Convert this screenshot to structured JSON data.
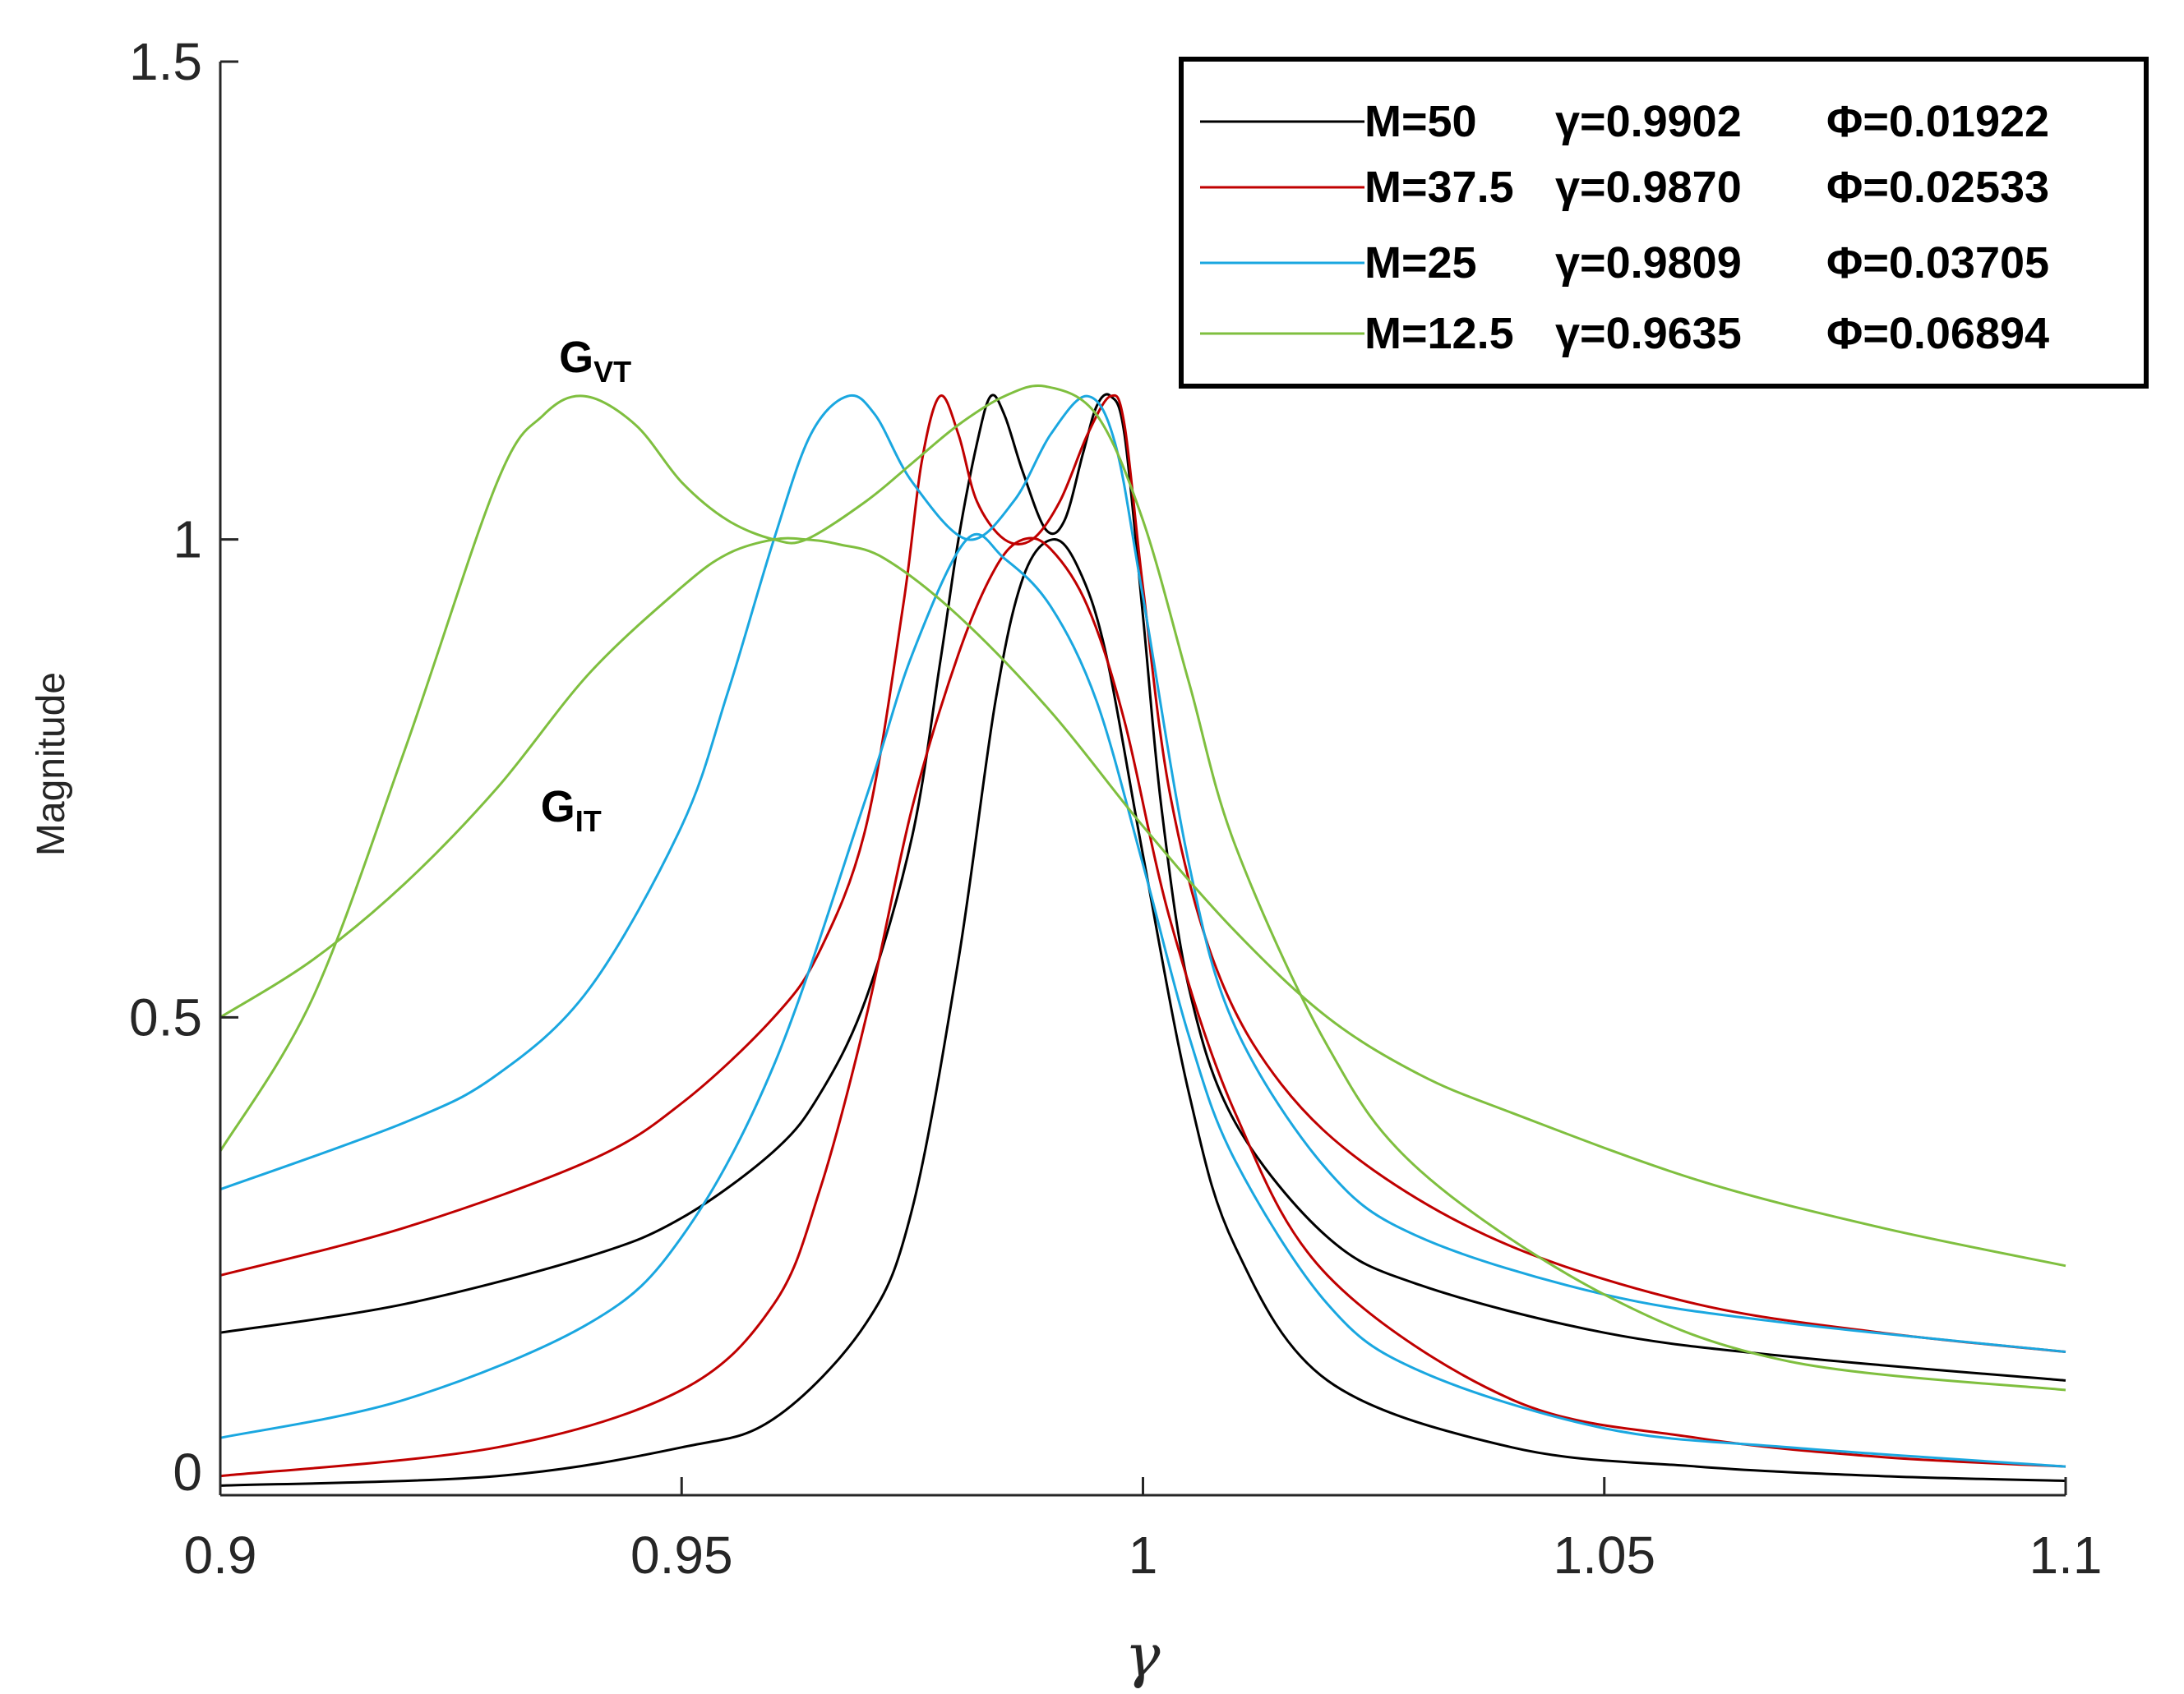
{
  "chart_data": {
    "type": "line",
    "title": "",
    "xlabel": "γ",
    "ylabel": "Magnitude",
    "xlim": [
      0.9,
      1.1
    ],
    "ylim": [
      0,
      1.5
    ],
    "xticks": [
      0.9,
      0.95,
      1,
      1.05,
      1.1
    ],
    "xtick_labels": [
      "0.9",
      "0.95",
      "1",
      "1.05",
      "1.1"
    ],
    "yticks": [
      0,
      0.5,
      1,
      1.5
    ],
    "ytick_labels": [
      "0",
      "0.5",
      "1",
      "1.5"
    ],
    "grid": false,
    "legend_position": "top-right",
    "legend": [
      {
        "label": "M=50",
        "gamma": "γ=0.9902",
        "phi": "Φ=0.01922",
        "color": "#000000"
      },
      {
        "label": "M=37.5",
        "gamma": "γ=0.9870",
        "phi": "Φ=0.02533",
        "color": "#c00000"
      },
      {
        "label": "M=25",
        "gamma": "γ=0.9809",
        "phi": "Φ=0.03705",
        "color": "#1aa7e0"
      },
      {
        "label": "M=12.5",
        "gamma": "γ=0.9635",
        "phi": "Φ=0.06894",
        "color": "#7fbf3f"
      }
    ],
    "annotations": [
      {
        "main": "G",
        "sub": "VT",
        "x": 0.9385,
        "y": 1.175
      },
      {
        "main": "G",
        "sub": "IT",
        "x": 0.9365,
        "y": 0.705
      }
    ],
    "series": [
      {
        "name": "G_VT M=50",
        "color": "#000000",
        "x": [
          0.9,
          0.92,
          0.94,
          0.95,
          0.96,
          0.965,
          0.97,
          0.975,
          0.978,
          0.98,
          0.982,
          0.9835,
          0.985,
          0.987,
          0.9895,
          0.9915,
          0.9935,
          0.995,
          0.9965,
          0.998,
          1.0,
          1.002,
          1.005,
          1.01,
          1.02,
          1.03,
          1.05,
          1.07,
          1.1
        ],
        "y": [
          0.17,
          0.2,
          0.25,
          0.29,
          0.36,
          0.42,
          0.52,
          0.69,
          0.87,
          1.0,
          1.1,
          1.15,
          1.13,
          1.07,
          1.01,
          1.02,
          1.09,
          1.14,
          1.15,
          1.11,
          0.92,
          0.72,
          0.53,
          0.39,
          0.27,
          0.22,
          0.17,
          0.145,
          0.12
        ]
      },
      {
        "name": "G_IT M=50",
        "color": "#000000",
        "x": [
          0.9,
          0.93,
          0.95,
          0.96,
          0.97,
          0.975,
          0.98,
          0.984,
          0.987,
          0.9902,
          0.993,
          0.996,
          1.0,
          1.005,
          1.01,
          1.02,
          1.04,
          1.06,
          1.08,
          1.1
        ],
        "y": [
          0.01,
          0.02,
          0.05,
          0.08,
          0.18,
          0.3,
          0.56,
          0.83,
          0.96,
          1.0,
          0.97,
          0.88,
          0.67,
          0.42,
          0.26,
          0.12,
          0.05,
          0.03,
          0.02,
          0.015
        ]
      },
      {
        "name": "G_VT M=37.5",
        "color": "#c00000",
        "x": [
          0.9,
          0.92,
          0.94,
          0.95,
          0.96,
          0.965,
          0.97,
          0.974,
          0.976,
          0.978,
          0.98,
          0.982,
          0.985,
          0.988,
          0.991,
          0.994,
          0.9965,
          0.998,
          1.0,
          1.003,
          1.008,
          1.015,
          1.025,
          1.04,
          1.06,
          1.08,
          1.1
        ],
        "y": [
          0.23,
          0.28,
          0.35,
          0.41,
          0.5,
          0.57,
          0.7,
          0.93,
          1.08,
          1.15,
          1.11,
          1.04,
          1.0,
          1.0,
          1.04,
          1.11,
          1.15,
          1.12,
          0.95,
          0.73,
          0.55,
          0.43,
          0.34,
          0.26,
          0.2,
          0.17,
          0.15
        ]
      },
      {
        "name": "G_IT M=37.5",
        "color": "#c00000",
        "x": [
          0.9,
          0.93,
          0.95,
          0.96,
          0.965,
          0.97,
          0.975,
          0.98,
          0.984,
          0.987,
          0.99,
          0.994,
          0.998,
          1.003,
          1.01,
          1.02,
          1.04,
          1.06,
          1.08,
          1.1
        ],
        "y": [
          0.02,
          0.05,
          0.11,
          0.2,
          0.32,
          0.5,
          0.72,
          0.88,
          0.97,
          1.0,
          0.99,
          0.93,
          0.81,
          0.6,
          0.4,
          0.23,
          0.1,
          0.06,
          0.04,
          0.03
        ]
      },
      {
        "name": "G_VT M=25",
        "color": "#1aa7e0",
        "x": [
          0.9,
          0.92,
          0.93,
          0.94,
          0.95,
          0.955,
          0.96,
          0.964,
          0.968,
          0.971,
          0.975,
          0.981,
          0.986,
          0.99,
          0.994,
          0.997,
          1.0,
          1.005,
          1.01,
          1.02,
          1.03,
          1.05,
          1.07,
          1.1
        ],
        "y": [
          0.32,
          0.39,
          0.44,
          0.53,
          0.7,
          0.84,
          1.0,
          1.11,
          1.15,
          1.13,
          1.06,
          1.0,
          1.04,
          1.11,
          1.15,
          1.1,
          0.94,
          0.66,
          0.49,
          0.34,
          0.27,
          0.21,
          0.18,
          0.15
        ]
      },
      {
        "name": "G_IT M=25",
        "color": "#1aa7e0",
        "x": [
          0.9,
          0.92,
          0.94,
          0.95,
          0.96,
          0.97,
          0.975,
          0.9809,
          0.985,
          0.99,
          0.995,
          1.0,
          1.005,
          1.01,
          1.02,
          1.03,
          1.05,
          1.07,
          1.1
        ],
        "y": [
          0.06,
          0.1,
          0.18,
          0.27,
          0.45,
          0.73,
          0.88,
          1.0,
          0.98,
          0.93,
          0.83,
          0.66,
          0.48,
          0.35,
          0.2,
          0.13,
          0.07,
          0.05,
          0.03
        ]
      },
      {
        "name": "G_VT M=12.5",
        "color": "#7fbf3f",
        "x": [
          0.9,
          0.91,
          0.92,
          0.93,
          0.935,
          0.9395,
          0.945,
          0.95,
          0.955,
          0.96,
          0.9635,
          0.97,
          0.975,
          0.98,
          0.985,
          0.9895,
          0.995,
          1.0,
          1.005,
          1.01,
          1.02,
          1.03,
          1.05,
          1.07,
          1.1
        ],
        "y": [
          0.36,
          0.52,
          0.78,
          1.06,
          1.13,
          1.15,
          1.12,
          1.06,
          1.02,
          1.0,
          1.0,
          1.04,
          1.08,
          1.12,
          1.15,
          1.16,
          1.13,
          1.02,
          0.85,
          0.68,
          0.47,
          0.34,
          0.21,
          0.14,
          0.11
        ]
      },
      {
        "name": "G_IT M=12.5",
        "color": "#7fbf3f",
        "x": [
          0.9,
          0.91,
          0.92,
          0.93,
          0.94,
          0.95,
          0.955,
          0.96,
          0.9635,
          0.967,
          0.972,
          0.98,
          0.99,
          1.0,
          1.01,
          1.02,
          1.03,
          1.04,
          1.06,
          1.08,
          1.1
        ],
        "y": [
          0.5,
          0.56,
          0.64,
          0.74,
          0.86,
          0.95,
          0.985,
          1.0,
          1.0,
          0.995,
          0.98,
          0.92,
          0.82,
          0.7,
          0.59,
          0.5,
          0.44,
          0.4,
          0.33,
          0.28,
          0.24
        ]
      }
    ]
  }
}
